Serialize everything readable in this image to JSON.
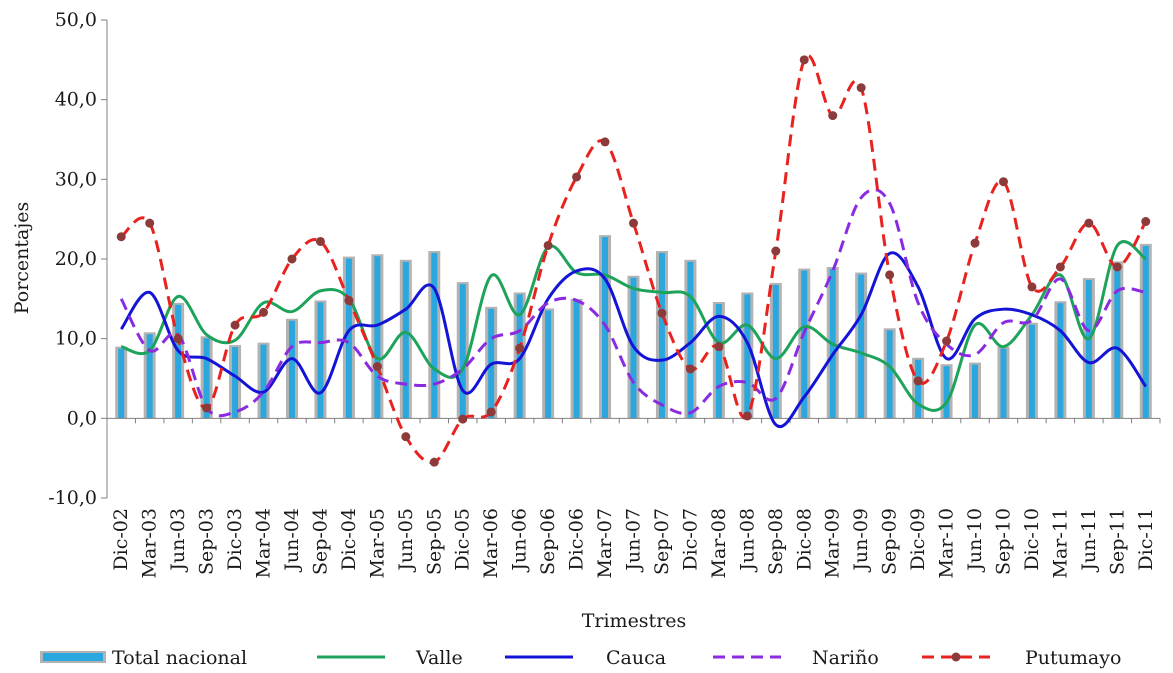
{
  "chart_data": {
    "type": "bar",
    "title": "",
    "xlabel": "Trimestres",
    "ylabel": "Porcentajes",
    "ylim": [
      -10,
      50
    ],
    "yticks": [
      "-10,0",
      "0,0",
      "10,0",
      "20,0",
      "30,0",
      "40,0",
      "50,0"
    ],
    "ytick_values": [
      -10,
      0,
      10,
      20,
      30,
      40,
      50
    ],
    "grid": false,
    "legend_position": "bottom",
    "categories": [
      "Dic-02",
      "Mar-03",
      "Jun-03",
      "Sep-03",
      "Dic-03",
      "Mar-04",
      "Jun-04",
      "Sep-04",
      "Dic-04",
      "Mar-05",
      "Jun-05",
      "Sep-05",
      "Dic-05",
      "Mar-06",
      "Jun-06",
      "Sep-06",
      "Dic-06",
      "Mar-07",
      "Jun-07",
      "Sep-07",
      "Dic-07",
      "Mar-08",
      "Jun-08",
      "Sep-08",
      "Dic-08",
      "Mar-09",
      "Jun-09",
      "Sep-09",
      "Dic-09",
      "Mar-10",
      "Jun-10",
      "Sep-10",
      "Dic-10",
      "Mar-11",
      "Jun-11",
      "Sep-11",
      "Dic-11"
    ],
    "series": [
      {
        "name": "Total nacional",
        "kind": "bar",
        "color": "#2aa7de",
        "border_color": "#b3b3b3",
        "values": [
          9.0,
          10.8,
          14.5,
          10.3,
          9.2,
          9.5,
          12.5,
          14.8,
          20.3,
          20.6,
          19.9,
          21.0,
          17.1,
          14.0,
          15.8,
          13.8,
          15.0,
          23.0,
          17.9,
          21.0,
          19.9,
          14.6,
          15.8,
          17.0,
          18.8,
          19.0,
          18.3,
          11.3,
          7.6,
          6.8,
          7.0,
          9.0,
          12.0,
          14.7,
          17.6,
          19.7,
          21.9
        ]
      },
      {
        "name": "Valle",
        "kind": "line",
        "color": "#1ea35a",
        "dash": "solid",
        "values": [
          9.0,
          8.5,
          15.3,
          10.5,
          9.8,
          14.5,
          13.4,
          16.0,
          15.0,
          7.5,
          10.8,
          6.2,
          6.2,
          17.9,
          13.0,
          21.5,
          18.3,
          18.0,
          16.3,
          15.8,
          15.3,
          9.5,
          11.7,
          7.5,
          11.5,
          9.3,
          8.2,
          6.5,
          1.8,
          2.0,
          11.7,
          9.0,
          13.0,
          18.0,
          10.0,
          21.7,
          20.0
        ]
      },
      {
        "name": "Cauca",
        "kind": "line",
        "color": "#1414d6",
        "dash": "solid",
        "values": [
          11.2,
          15.8,
          8.5,
          7.5,
          5.3,
          3.3,
          7.5,
          3.2,
          11.0,
          11.7,
          13.7,
          16.3,
          3.5,
          6.8,
          7.5,
          15.0,
          18.5,
          17.5,
          9.0,
          7.3,
          9.5,
          12.8,
          9.5,
          -0.8,
          2.7,
          8.0,
          13.0,
          20.7,
          16.5,
          7.5,
          12.5,
          13.7,
          13.0,
          11.0,
          7.0,
          8.8,
          4.0
        ]
      },
      {
        "name": "Nariño",
        "kind": "line",
        "color": "#8a2be2",
        "dash": "dashed",
        "values": [
          15.0,
          8.5,
          10.5,
          1.3,
          0.8,
          3.3,
          9.0,
          9.5,
          9.5,
          5.3,
          4.3,
          4.3,
          6.2,
          10.0,
          11.0,
          14.5,
          14.8,
          11.7,
          4.5,
          1.7,
          0.7,
          4.0,
          4.5,
          2.5,
          10.8,
          18.5,
          27.7,
          27.0,
          14.5,
          9.3,
          8.0,
          12.0,
          12.3,
          17.5,
          11.0,
          16.0,
          15.8
        ]
      },
      {
        "name": "Putumayo",
        "kind": "line",
        "color": "#e8231f",
        "dash": "dashed",
        "marker_color": "#8c3a3a",
        "values": [
          22.8,
          24.5,
          10.0,
          1.3,
          11.7,
          13.3,
          20.0,
          22.2,
          14.8,
          6.5,
          -2.3,
          -5.5,
          -0.1,
          0.8,
          8.8,
          21.7,
          30.3,
          34.7,
          24.5,
          13.2,
          6.2,
          9.0,
          0.3,
          21.0,
          45.0,
          38.0,
          41.5,
          18.0,
          4.7,
          9.7,
          22.0,
          29.7,
          16.5,
          19.0,
          24.5,
          19.0,
          24.7
        ]
      }
    ]
  }
}
